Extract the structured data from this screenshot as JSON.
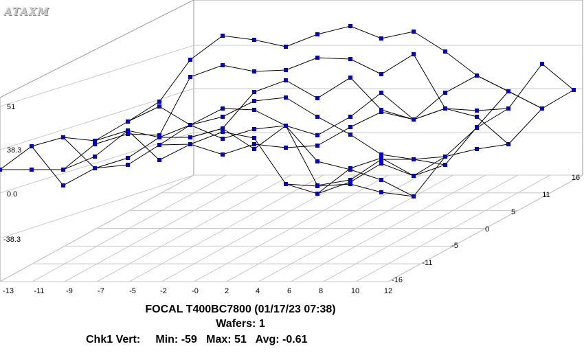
{
  "logo_text": "ATAXM",
  "chart_data": {
    "type": "3d-line-wireframe",
    "title": "FOCAL T400BC7800 (01/17/23 07:38)",
    "subtitle": "Wafers: 1",
    "stats": {
      "label": "Chk1 Vert:",
      "min_label": "Min:",
      "min": "-59",
      "max_label": "Max:",
      "max": "51",
      "avg_label": "Avg:",
      "avg": "-0.61"
    },
    "x_ticks": [
      "-13",
      "-11",
      "-9",
      "-7",
      "-5",
      "-2",
      "-0",
      "2",
      "4",
      "6",
      "8",
      "10",
      "12"
    ],
    "y_ticks": [
      "-16",
      "-11",
      "-5",
      "0",
      "5",
      "11",
      "16"
    ],
    "z_ticks": [
      "51",
      "38.3",
      "0.0",
      "-38.3"
    ],
    "z_range": [
      -59,
      51
    ],
    "grid": true,
    "marker_color": "#0000cc",
    "line_color": "#000000",
    "series_count": 7
  }
}
